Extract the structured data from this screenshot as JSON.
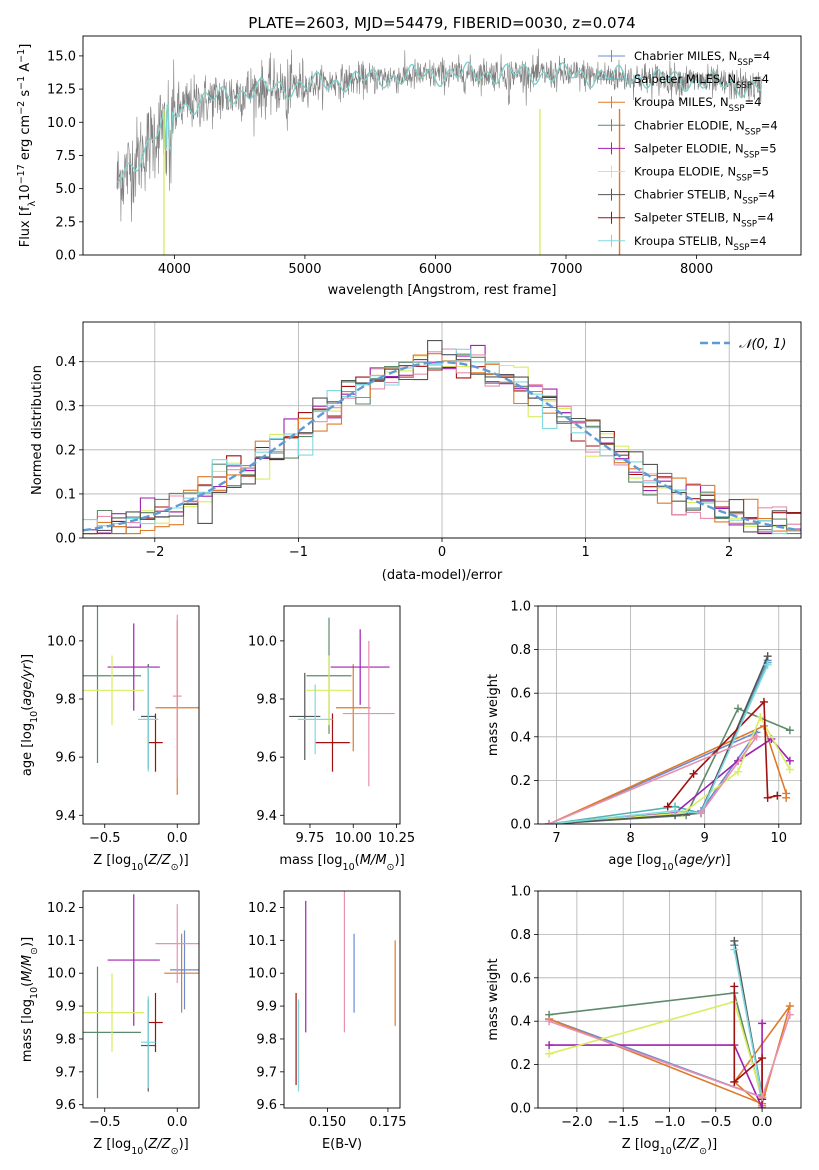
{
  "colors": {
    "chab_miles": "#6b8ccf",
    "salp_miles": "#55b2b2",
    "krou_miles": "#e07a2a",
    "chab_elodie": "#5f8a6a",
    "salp_elodie": "#a020b0",
    "krou_elodie": "#d8ee60",
    "chab_stelib": "#555555",
    "salp_stelib": "#a01010",
    "krou_stelib": "#80d8e0",
    "pink": "#e890b0",
    "data_grey": "#808080",
    "gauss": "#5f9ad8"
  },
  "chart_data": [
    {
      "id": "spectrum",
      "type": "line",
      "title": "PLATE=2603, MJD=54479, FIBERID=0030, z=0.074",
      "xlabel": "wavelength [Angstrom, rest frame]",
      "ylabel": "Flux [f_λ 10^-17 erg cm^-2 s^-1 A^-1]",
      "xlim": [
        3300,
        8800
      ],
      "ylim": [
        0,
        16.5
      ],
      "xticks": [
        "4000",
        "5000",
        "6000",
        "7000",
        "8000"
      ],
      "yticks": [
        "0.0",
        "2.5",
        "5.0",
        "7.5",
        "10.0",
        "12.5",
        "15.0"
      ],
      "legend_position": "right",
      "legend": [
        {
          "label": "Chabrier MILES, N",
          "sub": "SSP",
          "tail": "=4",
          "color": "#6b8ccf"
        },
        {
          "label": "Salpeter MILES, N",
          "sub": "SSP",
          "tail": "=4",
          "color": "#55b2b2"
        },
        {
          "label": "Kroupa MILES, N",
          "sub": "SSP",
          "tail": "=4",
          "color": "#e07a2a"
        },
        {
          "label": "Chabrier ELODIE, N",
          "sub": "SSP",
          "tail": "=4",
          "color": "#5f8a6a"
        },
        {
          "label": "Salpeter ELODIE, N",
          "sub": "SSP",
          "tail": "=5",
          "color": "#a020b0"
        },
        {
          "label": "Kroupa ELODIE, N",
          "sub": "SSP",
          "tail": "=5",
          "color": "#d8ee60"
        },
        {
          "label": "Chabrier STELIB, N",
          "sub": "SSP",
          "tail": "=4",
          "color": "#555555"
        },
        {
          "label": "Salpeter STELIB, N",
          "sub": "SSP",
          "tail": "=4",
          "color": "#a01010"
        },
        {
          "label": "Kroupa STELIB, N",
          "sub": "SSP",
          "tail": "=4",
          "color": "#80d8e0"
        }
      ],
      "continuum_x": [
        3560,
        3700,
        3850,
        3950,
        4100,
        4300,
        4600,
        5000,
        5500,
        6000,
        6500,
        7000,
        7500,
        8000,
        8500
      ],
      "continuum_y": [
        5.5,
        7.0,
        9.0,
        10.5,
        11.3,
        11.8,
        12.4,
        12.8,
        13.3,
        13.6,
        13.7,
        13.6,
        13.4,
        13.1,
        12.6
      ]
    },
    {
      "id": "residuals",
      "type": "bar",
      "xlabel": "(data-model)/error",
      "ylabel": "Normed distribution",
      "xlim": [
        -2.5,
        2.5
      ],
      "ylim": [
        0,
        0.49
      ],
      "xticks": [
        "−2",
        "−1",
        "0",
        "1",
        "2"
      ],
      "yticks": [
        "0.0",
        "0.1",
        "0.2",
        "0.3",
        "0.4"
      ],
      "legend": [
        "𝒩(0, 1)"
      ],
      "legend_position": "top-right",
      "grid": true
    },
    {
      "id": "age_vs_Z",
      "type": "scatter",
      "xlabel": "Z [log10(Z/Z⊙)]",
      "ylabel": "age  [log10(age/yr)]",
      "xlim": [
        -0.65,
        0.15
      ],
      "ylim": [
        9.37,
        10.12
      ],
      "xticks": [
        "−0.5",
        "0.0"
      ],
      "yticks": [
        "9.4",
        "9.6",
        "9.8",
        "10.0"
      ],
      "points": [
        {
          "x": 0.0,
          "y": 9.77,
          "xerr": 0.15,
          "yerr": 0.3,
          "color": "#e07a2a"
        },
        {
          "x": -0.55,
          "y": 9.88,
          "xerr": 0.3,
          "yerr": 0.3,
          "color": "#5f8a6a"
        },
        {
          "x": -0.3,
          "y": 9.91,
          "xerr": 0.18,
          "yerr": 0.15,
          "color": "#a020b0"
        },
        {
          "x": -0.45,
          "y": 9.83,
          "xerr": 0.22,
          "yerr": 0.12,
          "color": "#d8ee60"
        },
        {
          "x": -0.2,
          "y": 9.74,
          "xerr": 0.05,
          "yerr": 0.18,
          "color": "#555555"
        },
        {
          "x": -0.15,
          "y": 9.65,
          "xerr": 0.05,
          "yerr": 0.1,
          "color": "#a01010"
        },
        {
          "x": -0.2,
          "y": 9.73,
          "xerr": 0.07,
          "yerr": 0.18,
          "color": "#80d8e0"
        },
        {
          "x": 0.0,
          "y": 9.81,
          "xerr": 0.03,
          "yerr": 0.28,
          "color": "#e890b0"
        }
      ]
    },
    {
      "id": "age_vs_mass",
      "type": "scatter",
      "xlabel": "mass [log10(M/M⊙)]",
      "ylabel": "",
      "xlim": [
        9.6,
        10.27
      ],
      "ylim": [
        9.37,
        10.12
      ],
      "xticks": [
        "9.75",
        "10.00",
        "10.25"
      ],
      "yticks": [
        "9.4",
        "9.6",
        "9.8",
        "10.0"
      ],
      "points": [
        {
          "x": 10.0,
          "y": 9.77,
          "xerr": 0.1,
          "yerr": 0.15,
          "color": "#e07a2a"
        },
        {
          "x": 9.86,
          "y": 9.88,
          "xerr": 0.13,
          "yerr": 0.2,
          "color": "#5f8a6a"
        },
        {
          "x": 10.04,
          "y": 9.91,
          "xerr": 0.17,
          "yerr": 0.13,
          "color": "#a020b0"
        },
        {
          "x": 9.86,
          "y": 9.83,
          "xerr": 0.13,
          "yerr": 0.12,
          "color": "#d8ee60"
        },
        {
          "x": 9.72,
          "y": 9.74,
          "xerr": 0.09,
          "yerr": 0.15,
          "color": "#555555"
        },
        {
          "x": 9.88,
          "y": 9.65,
          "xerr": 0.1,
          "yerr": 0.1,
          "color": "#a01010"
        },
        {
          "x": 9.78,
          "y": 9.73,
          "xerr": 0.1,
          "yerr": 0.12,
          "color": "#80d8e0"
        },
        {
          "x": 10.09,
          "y": 9.75,
          "xerr": 0.15,
          "yerr": 0.25,
          "color": "#e890b0"
        }
      ]
    },
    {
      "id": "weight_vs_age",
      "type": "line",
      "xlabel": "age  [log10(age/yr)]",
      "ylabel": "mass weight",
      "xlim": [
        6.75,
        10.3
      ],
      "ylim": [
        0,
        1.0
      ],
      "xticks": [
        "7",
        "8",
        "9",
        "10"
      ],
      "yticks": [
        "0.0",
        "0.2",
        "0.4",
        "0.6",
        "0.8",
        "1.0"
      ],
      "grid": true,
      "series": [
        {
          "color": "#6b8ccf",
          "x": [
            6.9,
            9.7,
            8.95,
            9.85
          ],
          "y": [
            0.0,
            0.42,
            0.06,
            0.75
          ]
        },
        {
          "color": "#55b2b2",
          "x": [
            6.9,
            8.6,
            8.95,
            9.85
          ],
          "y": [
            0.0,
            0.08,
            0.05,
            0.74
          ]
        },
        {
          "color": "#e07a2a",
          "x": [
            6.9,
            9.8,
            10.1,
            10.1
          ],
          "y": [
            0.0,
            0.45,
            0.14,
            0.12
          ]
        },
        {
          "color": "#5f8a6a",
          "x": [
            6.9,
            8.75,
            9.45,
            10.15
          ],
          "y": [
            0.0,
            0.04,
            0.53,
            0.43
          ]
        },
        {
          "color": "#a020b0",
          "x": [
            6.9,
            8.6,
            9.45,
            9.9,
            10.15
          ],
          "y": [
            0.0,
            0.05,
            0.29,
            0.39,
            0.29
          ]
        },
        {
          "color": "#d8ee60",
          "x": [
            6.9,
            8.7,
            9.45,
            9.75,
            10.15
          ],
          "y": [
            0.0,
            0.05,
            0.24,
            0.49,
            0.25
          ]
        },
        {
          "color": "#555555",
          "x": [
            6.9,
            8.6,
            8.95,
            9.85
          ],
          "y": [
            0.0,
            0.04,
            0.05,
            0.77
          ]
        },
        {
          "color": "#a01010",
          "x": [
            8.5,
            8.85,
            9.8,
            9.85,
            9.98
          ],
          "y": [
            0.08,
            0.23,
            0.56,
            0.12,
            0.13
          ]
        },
        {
          "color": "#80d8e0",
          "x": [
            6.9,
            8.6,
            8.95,
            9.85
          ],
          "y": [
            0.0,
            0.06,
            0.05,
            0.73
          ]
        },
        {
          "color": "#e890b0",
          "x": [
            6.9,
            9.7,
            8.95
          ],
          "y": [
            0.0,
            0.4,
            0.05
          ]
        }
      ]
    },
    {
      "id": "mass_vs_Z",
      "type": "scatter",
      "xlabel": "Z [log10(Z/Z⊙)]",
      "ylabel": "mass [log10(M/M⊙)]",
      "xlim": [
        -0.65,
        0.15
      ],
      "ylim": [
        9.59,
        10.25
      ],
      "xticks": [
        "−0.5",
        "0.0"
      ],
      "yticks": [
        "9.6",
        "9.7",
        "9.8",
        "9.9",
        "10.0",
        "10.1",
        "10.2"
      ],
      "points": [
        {
          "x": 0.03,
          "y": 10.0,
          "xerr": 0.12,
          "yerr": 0.12,
          "color": "#e07a2a"
        },
        {
          "x": 0.05,
          "y": 10.01,
          "xerr": 0.1,
          "yerr": 0.12,
          "color": "#6b8ccf"
        },
        {
          "x": -0.55,
          "y": 9.82,
          "xerr": 0.3,
          "yerr": 0.2,
          "color": "#5f8a6a"
        },
        {
          "x": -0.3,
          "y": 10.04,
          "xerr": 0.18,
          "yerr": 0.2,
          "color": "#a020b0"
        },
        {
          "x": -0.45,
          "y": 9.88,
          "xerr": 0.22,
          "yerr": 0.12,
          "color": "#d8ee60"
        },
        {
          "x": -0.2,
          "y": 9.78,
          "xerr": 0.05,
          "yerr": 0.14,
          "color": "#555555"
        },
        {
          "x": -0.15,
          "y": 9.85,
          "xerr": 0.05,
          "yerr": 0.09,
          "color": "#a01010"
        },
        {
          "x": -0.2,
          "y": 9.79,
          "xerr": 0.05,
          "yerr": 0.14,
          "color": "#80d8e0"
        },
        {
          "x": 0.0,
          "y": 10.09,
          "xerr": 0.15,
          "yerr": 0.12,
          "color": "#e890b0"
        }
      ]
    },
    {
      "id": "mass_vs_EBV",
      "type": "scatter",
      "xlabel": "E(B-V)",
      "ylabel": "",
      "xlim": [
        0.132,
        0.18
      ],
      "ylim": [
        9.59,
        10.25
      ],
      "xticks": [
        "0.150",
        "0.175"
      ],
      "yticks": [
        "9.6",
        "9.7",
        "9.8",
        "9.9",
        "10.0",
        "10.1",
        "10.2"
      ],
      "points": [
        {
          "x": 0.137,
          "y": 9.8,
          "xerr": 0,
          "yerr": 0.14,
          "color": "#a01010"
        },
        {
          "x": 0.138,
          "y": 9.78,
          "xerr": 0,
          "yerr": 0.14,
          "color": "#80d8e0"
        },
        {
          "x": 0.141,
          "y": 10.02,
          "xerr": 0,
          "yerr": 0.2,
          "color": "#a020b0"
        },
        {
          "x": 0.161,
          "y": 10.0,
          "xerr": 0,
          "yerr": 0.12,
          "color": "#6b8ccf"
        },
        {
          "x": 0.157,
          "y": 10.08,
          "xerr": 0,
          "yerr": 0.26,
          "color": "#e890b0"
        },
        {
          "x": 0.178,
          "y": 9.97,
          "xerr": 0,
          "yerr": 0.13,
          "color": "#e07a2a"
        }
      ]
    },
    {
      "id": "weight_vs_Z",
      "type": "line",
      "xlabel": "Z [log10(Z/Z⊙)]",
      "ylabel": "mass weight",
      "xlim": [
        -2.42,
        0.42
      ],
      "ylim": [
        0,
        1.0
      ],
      "xticks": [
        "−2.0",
        "−1.5",
        "−1.0",
        "−0.5",
        "0.0"
      ],
      "yticks": [
        "0.0",
        "0.2",
        "0.4",
        "0.6",
        "0.8",
        "1.0"
      ],
      "grid": true,
      "series": [
        {
          "color": "#6b8ccf",
          "x": [
            -2.3,
            0.0,
            -0.3,
            0.0
          ],
          "y": [
            0.41,
            0.05,
            0.75,
            0.06
          ]
        },
        {
          "color": "#e07a2a",
          "x": [
            -2.3,
            0.0,
            0.3,
            -0.3,
            0.0
          ],
          "y": [
            0.41,
            0.02,
            0.47,
            0.12,
            0.01
          ]
        },
        {
          "color": "#5f8a6a",
          "x": [
            -2.3,
            -0.3,
            0.0
          ],
          "y": [
            0.43,
            0.53,
            0.04
          ]
        },
        {
          "color": "#a020b0",
          "x": [
            -2.3,
            -0.3,
            0.0,
            0.0
          ],
          "y": [
            0.29,
            0.29,
            0.0,
            0.39
          ]
        },
        {
          "color": "#d8ee60",
          "x": [
            -2.3,
            -0.3,
            0.0
          ],
          "y": [
            0.25,
            0.49,
            0.05
          ]
        },
        {
          "color": "#555555",
          "x": [
            -0.3,
            0.0
          ],
          "y": [
            0.77,
            0.05
          ]
        },
        {
          "color": "#a01010",
          "x": [
            -0.3,
            -0.3,
            0.0,
            0.0
          ],
          "y": [
            0.56,
            0.12,
            0.23,
            0.04
          ]
        },
        {
          "color": "#80d8e0",
          "x": [
            -0.3,
            0.0
          ],
          "y": [
            0.73,
            0.05
          ]
        },
        {
          "color": "#e890b0",
          "x": [
            -2.3,
            0.0,
            0.3
          ],
          "y": [
            0.4,
            0.05,
            0.43
          ]
        }
      ]
    }
  ]
}
